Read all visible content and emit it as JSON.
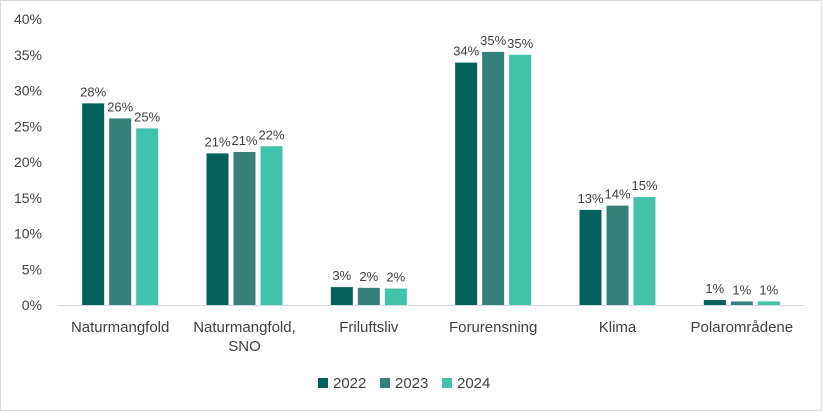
{
  "chart_data": {
    "type": "bar",
    "title": "",
    "xlabel": "",
    "ylabel": "",
    "categories": [
      "Naturmangfold",
      "Naturmangfold, SNO",
      "Friluftsliv",
      "Forurensning",
      "Klima",
      "Polarområdene"
    ],
    "category_lines": [
      [
        "Naturmangfold"
      ],
      [
        "Naturmangfold,",
        "SNO"
      ],
      [
        "Friluftsliv"
      ],
      [
        "Forurensning"
      ],
      [
        "Klima"
      ],
      [
        "Polarområdene"
      ]
    ],
    "ylim": [
      0,
      40
    ],
    "yticks": [
      0,
      5,
      10,
      15,
      20,
      25,
      30,
      35,
      40
    ],
    "ytick_labels": [
      "0%",
      "5%",
      "10%",
      "15%",
      "20%",
      "25%",
      "30%",
      "35%",
      "40%"
    ],
    "grid": false,
    "legend_position": "bottom",
    "series": [
      {
        "name": "2022",
        "color": "#03605a",
        "values": [
          28.2,
          21.2,
          2.5,
          33.9,
          13.3,
          0.7
        ],
        "labels": [
          "28%",
          "21%",
          "3%",
          "34%",
          "13%",
          "1%"
        ]
      },
      {
        "name": "2023",
        "color": "#367f7b",
        "values": [
          26.1,
          21.4,
          2.4,
          35.4,
          13.9,
          0.5
        ],
        "labels": [
          "26%",
          "21%",
          "2%",
          "35%",
          "14%",
          "1%"
        ]
      },
      {
        "name": "2024",
        "color": "#40c3aa",
        "values": [
          24.7,
          22.2,
          2.3,
          35.0,
          15.1,
          0.5
        ],
        "labels": [
          "25%",
          "22%",
          "2%",
          "35%",
          "15%",
          "1%"
        ]
      }
    ]
  }
}
